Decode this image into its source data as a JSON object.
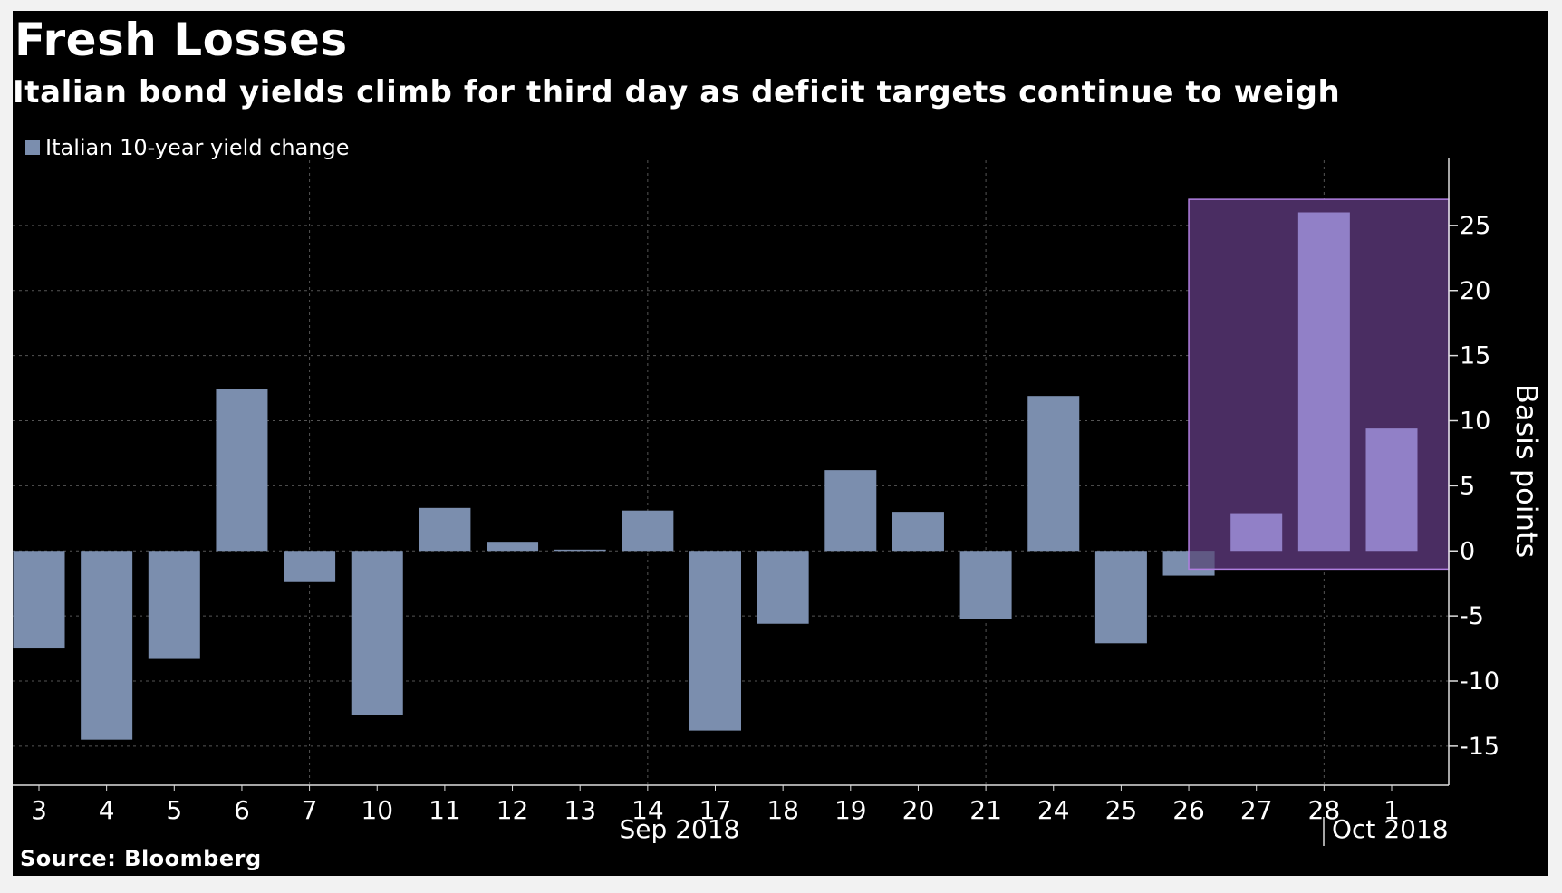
{
  "title": "Fresh Losses",
  "subtitle": "Italian bond yields climb for third day as deficit targets continue to weigh",
  "source": "Source: Bloomberg",
  "colors": {
    "background": "#000000",
    "bar": "#7b8eae",
    "highlight_bar": "#9180c7",
    "highlight_fill": "#4a2d62",
    "highlight_border": "#b07fe0",
    "text": "#ffffff",
    "grid": "#555555"
  },
  "chart_data": {
    "type": "bar",
    "title": "Fresh Losses",
    "subtitle": "Italian bond yields climb for third day as deficit targets continue to weigh",
    "categories": [
      "3",
      "4",
      "5",
      "6",
      "7",
      "10",
      "11",
      "12",
      "13",
      "14",
      "17",
      "18",
      "19",
      "20",
      "21",
      "24",
      "25",
      "26",
      "27",
      "28",
      "1"
    ],
    "month_labels": [
      "Sep 2018",
      "Oct 2018"
    ],
    "series": [
      {
        "name": "Italian 10-year yield change",
        "values": [
          -7.5,
          -14.5,
          -8.3,
          12.4,
          -2.4,
          -12.6,
          3.3,
          0.7,
          0.1,
          3.1,
          -13.8,
          -5.6,
          6.2,
          3.0,
          -5.2,
          11.9,
          -7.1,
          -1.9,
          2.9,
          26.0,
          9.4
        ]
      }
    ],
    "highlight": {
      "from_category": "26",
      "to_category": "1",
      "ymin": -1.4,
      "ymax": 27
    },
    "ylabel": "Basis points",
    "xlabel": "",
    "yticks": [
      -15,
      -10,
      -5,
      0,
      5,
      10,
      15,
      20,
      25
    ],
    "ylim": [
      -18,
      30
    ],
    "y_axis_side": "right",
    "grid": true,
    "legend_position": "top-left"
  }
}
